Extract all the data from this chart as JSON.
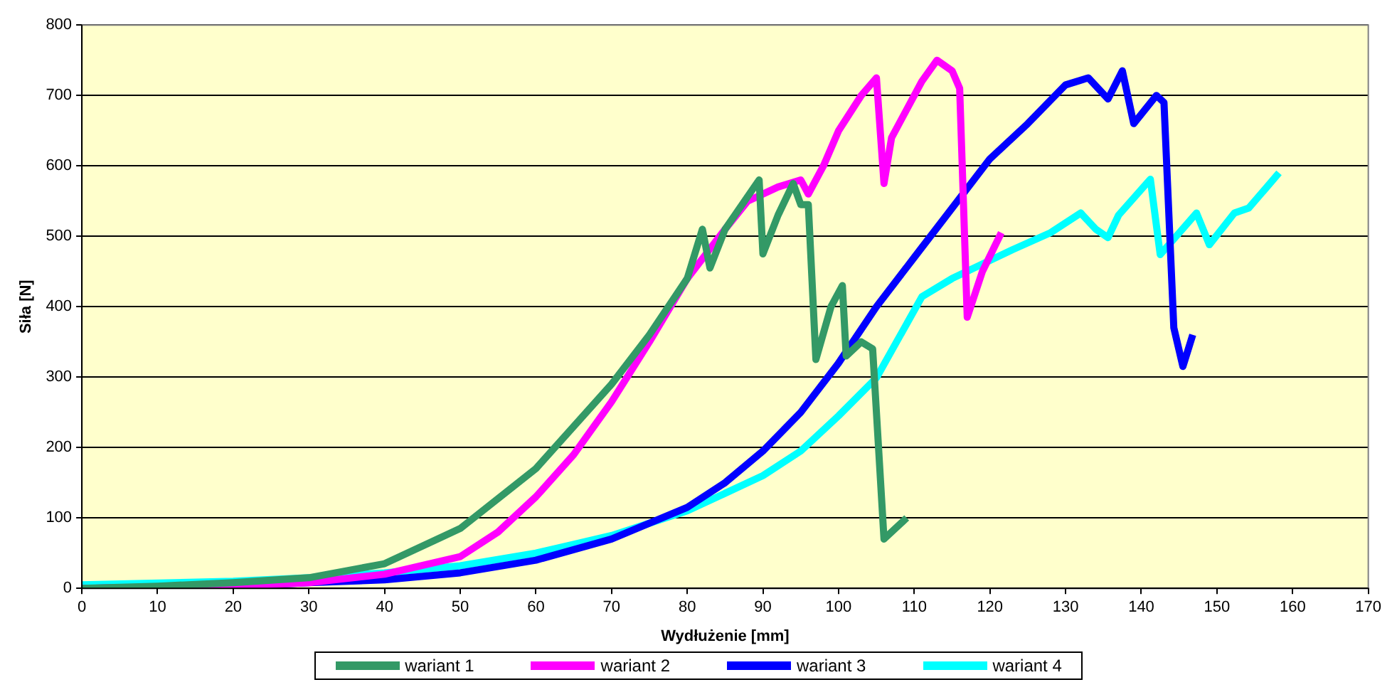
{
  "chart_data": {
    "type": "line",
    "xlabel": "Wydłużenie [mm]",
    "ylabel": "Siła [N]",
    "xlim": [
      0,
      170
    ],
    "xticks": [
      0,
      10,
      20,
      30,
      40,
      50,
      60,
      70,
      80,
      90,
      100,
      110,
      120,
      130,
      140,
      150,
      160,
      170
    ],
    "ylim": [
      0,
      800
    ],
    "yticks": [
      0,
      100,
      200,
      300,
      400,
      500,
      600,
      700,
      800
    ],
    "grid": "y",
    "legend": "bottom",
    "marker": "none",
    "line_style": "solid",
    "series": [
      {
        "name": "wariant 1",
        "color": "#339966",
        "x": [
          0,
          10,
          20,
          30,
          40,
          50,
          60,
          70,
          75,
          80,
          82,
          83,
          85,
          89.5,
          90,
          92,
          94,
          95,
          96,
          97,
          99,
          100.5,
          101,
          103,
          104.5,
          106,
          109
        ],
        "values": [
          0,
          3,
          8,
          15,
          35,
          85,
          170,
          290,
          360,
          440,
          510,
          455,
          510,
          580,
          475,
          530,
          575,
          545,
          545,
          325,
          400,
          430,
          330,
          350,
          340,
          70,
          100
        ]
      },
      {
        "name": "wariant 2",
        "color": "#ff00ff",
        "x": [
          0,
          20,
          30,
          40,
          50,
          55,
          60,
          65,
          70,
          75,
          80,
          85,
          88,
          92,
          95,
          96,
          98,
          100,
          103,
          105,
          106,
          107,
          109,
          111,
          113,
          115,
          116,
          117,
          119,
          121.5
        ],
        "values": [
          0,
          3,
          8,
          20,
          45,
          80,
          130,
          190,
          265,
          350,
          440,
          510,
          550,
          570,
          580,
          560,
          600,
          650,
          700,
          725,
          575,
          640,
          680,
          720,
          750,
          735,
          710,
          385,
          450,
          505
        ]
      },
      {
        "name": "wariant 3",
        "color": "#0000ff",
        "x": [
          0,
          20,
          30,
          40,
          50,
          60,
          70,
          80,
          85,
          90,
          95,
          100,
          105,
          110,
          115,
          120,
          125,
          130,
          133,
          135.6,
          137.5,
          139,
          142,
          143,
          144.3,
          145.5,
          146.8
        ],
        "values": [
          0,
          3,
          8,
          12,
          22,
          40,
          70,
          115,
          150,
          195,
          250,
          320,
          400,
          470,
          540,
          610,
          660,
          715,
          725,
          695,
          735,
          660,
          700,
          690,
          370,
          315,
          360
        ]
      },
      {
        "name": "wariant 4",
        "color": "#00ffff",
        "x": [
          0,
          20,
          30,
          40,
          50,
          60,
          70,
          80,
          90,
          95,
          100,
          105,
          111,
          115,
          123,
          128,
          132,
          134,
          135.6,
          137,
          141.2,
          142.5,
          147.3,
          149,
          152.3,
          154.2,
          158.2
        ],
        "values": [
          5,
          10,
          15,
          22,
          32,
          50,
          75,
          110,
          160,
          195,
          245,
          299,
          414,
          440,
          481,
          505,
          533,
          510,
          498,
          530,
          581,
          474,
          533,
          488,
          533,
          540,
          590
        ]
      }
    ]
  }
}
